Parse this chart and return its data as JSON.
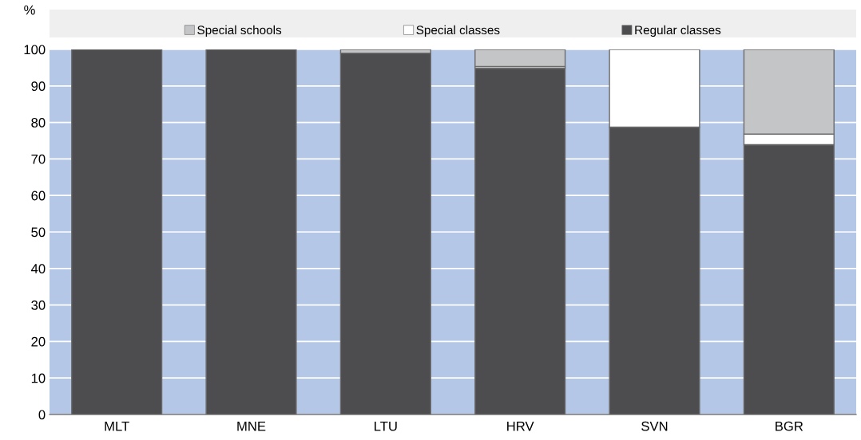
{
  "chart_data": {
    "type": "bar",
    "stacked": true,
    "ylabel": "%",
    "categories": [
      "MLT",
      "MNE",
      "LTU",
      "HRV",
      "SVN",
      "BGR"
    ],
    "series": [
      {
        "name": "Regular classes",
        "color": "#4d4d4f",
        "values": [
          100,
          100,
          99,
          94.8,
          78.7,
          73.9
        ]
      },
      {
        "name": "Special classes",
        "color": "#ffffff",
        "values": [
          0,
          0,
          0,
          0.5,
          21.3,
          2.9
        ]
      },
      {
        "name": "Special schools",
        "color": "#c4c5c7",
        "values": [
          0,
          0,
          1,
          4.7,
          0,
          23.2
        ]
      }
    ],
    "ylim": [
      0,
      100
    ],
    "yticks": [
      0,
      10,
      20,
      30,
      40,
      50,
      60,
      70,
      80,
      90,
      100
    ],
    "bands": [
      {
        "axis": "y",
        "from": 0,
        "to": 100,
        "color": "#b4c7e7"
      }
    ],
    "grid": "y",
    "legend": "top"
  }
}
